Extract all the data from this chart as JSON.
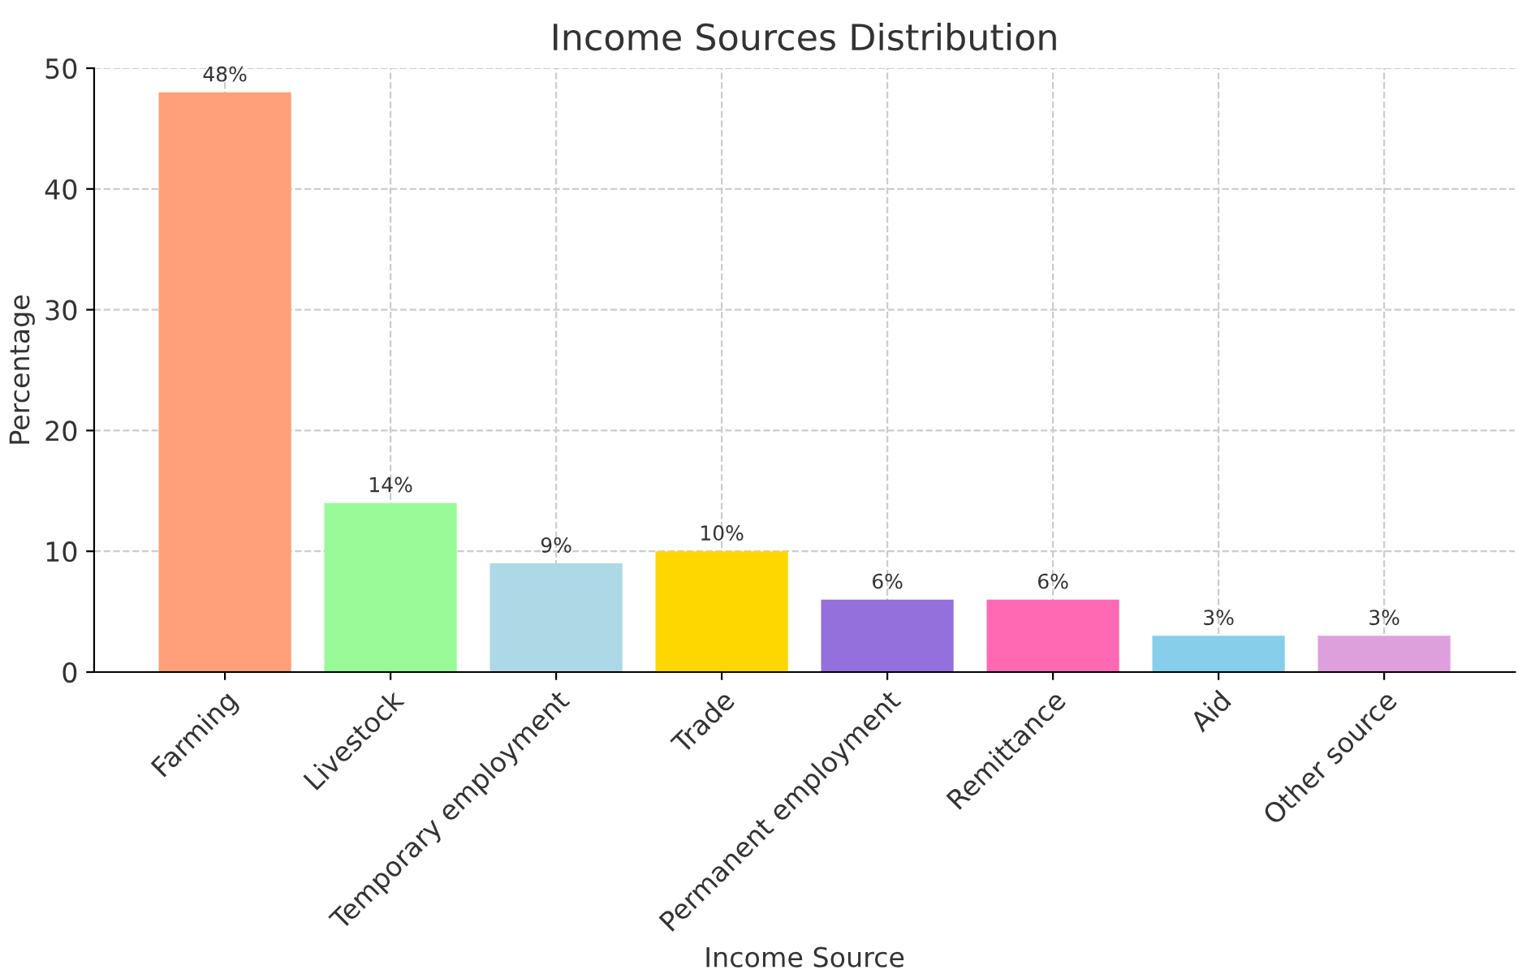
{
  "chart_data": {
    "type": "bar",
    "title": "Income Sources Distribution",
    "xlabel": "Income Source",
    "ylabel": "Percentage",
    "categories": [
      "Farming",
      "Livestock",
      "Temporary employment",
      "Trade",
      "Permanent employment",
      "Remittance",
      "Aid",
      "Other source"
    ],
    "values": [
      48,
      14,
      9,
      10,
      6,
      6,
      3,
      3
    ],
    "colors": [
      "#ffa07a",
      "#98fb98",
      "#add8e6",
      "#ffd700",
      "#9370db",
      "#ff69b4",
      "#87ceeb",
      "#dda0dd"
    ],
    "value_labels": [
      "48%",
      "14%",
      "9%",
      "10%",
      "6%",
      "6%",
      "3%",
      "3%"
    ],
    "ylim": [
      0,
      50
    ],
    "yticks": [
      0,
      10,
      20,
      30,
      40,
      50
    ],
    "grid": true
  }
}
